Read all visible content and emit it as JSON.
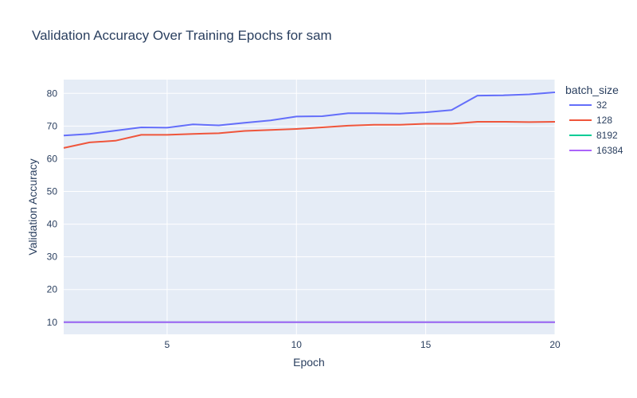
{
  "chart_data": {
    "type": "line",
    "title": "Validation Accuracy Over Training Epochs for sam",
    "xlabel": "Epoch",
    "ylabel": "Validation Accuracy",
    "xlim": [
      1,
      20
    ],
    "ylim": [
      6.3,
      84.2
    ],
    "x_ticks": [
      5,
      10,
      15,
      20
    ],
    "y_ticks": [
      10,
      20,
      30,
      40,
      50,
      60,
      70,
      80
    ],
    "grid": true,
    "legend_title": "batch_size",
    "legend_position": "right",
    "x": [
      1,
      2,
      3,
      4,
      5,
      6,
      7,
      8,
      9,
      10,
      11,
      12,
      13,
      14,
      15,
      16,
      17,
      18,
      19,
      20
    ],
    "series": [
      {
        "name": "32",
        "color": "#636efa",
        "values": [
          67.1,
          67.6,
          68.6,
          69.6,
          69.5,
          70.5,
          70.2,
          71.0,
          71.7,
          72.9,
          73.0,
          73.9,
          73.9,
          73.8,
          74.2,
          74.9,
          79.3,
          79.4,
          79.7,
          80.3
        ]
      },
      {
        "name": "128",
        "color": "#ef553b",
        "values": [
          63.3,
          65.0,
          65.5,
          67.3,
          67.3,
          67.6,
          67.8,
          68.5,
          68.8,
          69.1,
          69.6,
          70.1,
          70.4,
          70.4,
          70.7,
          70.7,
          71.3,
          71.3,
          71.2,
          71.3
        ]
      },
      {
        "name": "8192",
        "color": "#00cc96",
        "values": [
          10,
          10,
          10,
          10,
          10,
          10,
          10,
          10,
          10,
          10,
          10,
          10,
          10,
          10,
          10,
          10,
          10,
          10,
          10,
          10
        ]
      },
      {
        "name": "16384",
        "color": "#ab63fa",
        "values": [
          10,
          10,
          10,
          10,
          10,
          10,
          10,
          10,
          10,
          10,
          10,
          10,
          10,
          10,
          10,
          10,
          10,
          10,
          10,
          10
        ]
      }
    ]
  }
}
